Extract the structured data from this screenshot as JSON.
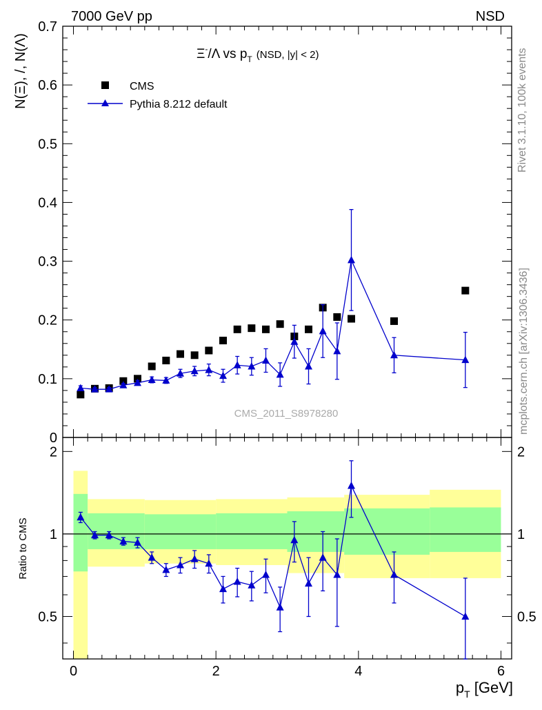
{
  "header": {
    "left": "7000 GeV pp",
    "right": "NSD"
  },
  "side_labels": {
    "rivet": "Rivet 3.1.10,  100k events",
    "source": "mcplots.cern.ch [arXiv:1306.3436]"
  },
  "chart_data": [
    {
      "type": "scatter",
      "title": {
        "main_a": "Ξ",
        "main_sup": "-",
        "main_b": "/Λ  vs p",
        "main_sub": "T",
        "cut": "(NSD, |y| < 2)"
      },
      "ylabel": "N(Ξ), /, N(Λ)",
      "xlim": [
        -0.15,
        6.15
      ],
      "ylim": [
        0,
        0.7
      ],
      "yticks": [
        "0",
        "0.1",
        "0.2",
        "0.3",
        "0.4",
        "0.5",
        "0.6",
        "0.7"
      ],
      "watermark": "CMS_2011_S8978280",
      "legend_position": "top-left",
      "series": [
        {
          "name": "CMS",
          "marker": "square",
          "color": "#000000",
          "x": [
            0.1,
            0.3,
            0.5,
            0.7,
            0.9,
            1.1,
            1.3,
            1.5,
            1.7,
            1.9,
            2.1,
            2.3,
            2.5,
            2.7,
            2.9,
            3.1,
            3.3,
            3.5,
            3.7,
            3.9,
            4.5,
            5.5
          ],
          "y": [
            0.073,
            0.083,
            0.084,
            0.096,
            0.1,
            0.121,
            0.131,
            0.142,
            0.14,
            0.148,
            0.165,
            0.184,
            0.186,
            0.184,
            0.193,
            0.172,
            0.184,
            0.221,
            0.205,
            0.202,
            0.198,
            0.25
          ]
        },
        {
          "name": "Pythia 8.212 default",
          "marker": "triangle",
          "color": "#0000cc",
          "x": [
            0.1,
            0.3,
            0.5,
            0.7,
            0.9,
            1.1,
            1.3,
            1.5,
            1.7,
            1.9,
            2.1,
            2.3,
            2.5,
            2.7,
            2.9,
            3.1,
            3.3,
            3.5,
            3.7,
            3.9,
            4.5,
            5.5
          ],
          "y": [
            0.084,
            0.082,
            0.082,
            0.089,
            0.093,
            0.098,
            0.097,
            0.109,
            0.113,
            0.115,
            0.105,
            0.123,
            0.121,
            0.131,
            0.107,
            0.163,
            0.121,
            0.181,
            0.147,
            0.302,
            0.14,
            0.132
          ],
          "yerr": [
            0.004,
            0.003,
            0.003,
            0.003,
            0.004,
            0.005,
            0.005,
            0.007,
            0.008,
            0.01,
            0.011,
            0.015,
            0.015,
            0.02,
            0.02,
            0.028,
            0.03,
            0.045,
            0.048,
            0.086,
            0.03,
            0.047
          ]
        }
      ]
    },
    {
      "type": "scatter",
      "ylabel": "Ratio to CMS",
      "xlabel": "p",
      "xlabel_sub": "T",
      "xlabel_unit": " [GeV]",
      "xlim": [
        -0.15,
        6.15
      ],
      "ylim": [
        0.35,
        2.25
      ],
      "xticks": [
        "0",
        "2",
        "4",
        "6"
      ],
      "yticks": [
        "0.5",
        "1",
        "2"
      ],
      "reference_line": 1,
      "bands": {
        "bins": [
          [
            0.0,
            0.2
          ],
          [
            0.2,
            1.0
          ],
          [
            1.0,
            2.0
          ],
          [
            2.0,
            3.0
          ],
          [
            3.0,
            3.8
          ],
          [
            3.8,
            5.0
          ],
          [
            5.0,
            6.0
          ]
        ],
        "inner": [
          [
            0.73,
            1.4
          ],
          [
            0.88,
            1.19
          ],
          [
            0.88,
            1.18
          ],
          [
            0.88,
            1.19
          ],
          [
            0.86,
            1.21
          ],
          [
            0.84,
            1.24
          ],
          [
            0.86,
            1.25
          ]
        ],
        "outer": [
          [
            0.3,
            1.7
          ],
          [
            0.76,
            1.34
          ],
          [
            0.78,
            1.33
          ],
          [
            0.77,
            1.34
          ],
          [
            0.72,
            1.36
          ],
          [
            0.69,
            1.39
          ],
          [
            0.69,
            1.45
          ]
        ],
        "inner_color": "#99ff99",
        "outer_color": "#ffff99"
      },
      "series": [
        {
          "name": "Pythia 8.212 default",
          "marker": "triangle",
          "color": "#0000cc",
          "x": [
            0.1,
            0.3,
            0.5,
            0.7,
            0.9,
            1.1,
            1.3,
            1.5,
            1.7,
            1.9,
            2.1,
            2.3,
            2.5,
            2.7,
            2.9,
            3.1,
            3.3,
            3.5,
            3.7,
            3.9,
            4.5,
            5.5
          ],
          "y": [
            1.15,
            0.99,
            0.99,
            0.94,
            0.93,
            0.82,
            0.74,
            0.77,
            0.81,
            0.78,
            0.63,
            0.67,
            0.65,
            0.71,
            0.54,
            0.95,
            0.66,
            0.82,
            0.71,
            1.5,
            0.71,
            0.5
          ],
          "yerr": [
            0.05,
            0.03,
            0.03,
            0.03,
            0.04,
            0.04,
            0.04,
            0.05,
            0.06,
            0.06,
            0.07,
            0.08,
            0.08,
            0.1,
            0.1,
            0.16,
            0.16,
            0.2,
            0.25,
            0.35,
            0.15,
            0.19
          ]
        }
      ]
    }
  ]
}
